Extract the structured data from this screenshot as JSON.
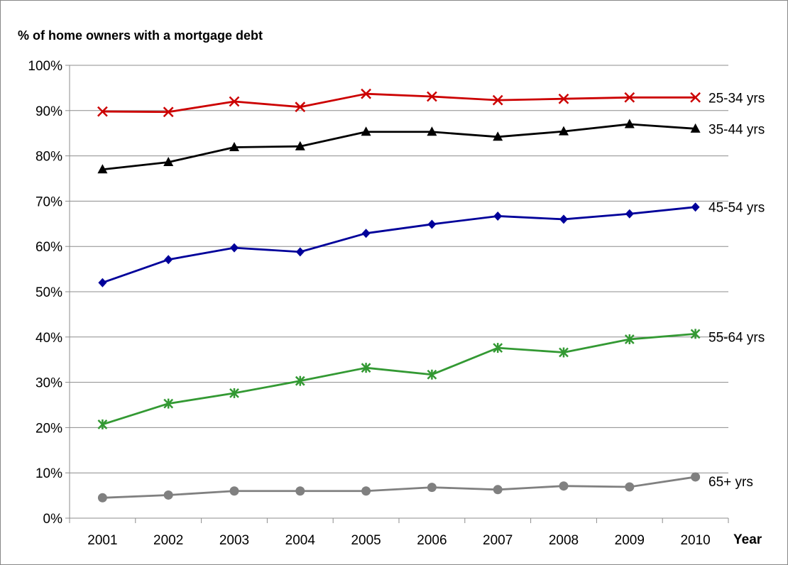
{
  "chart_data": {
    "type": "line",
    "title": "% of home owners with a mortgage debt",
    "xlabel": "Year",
    "ylabel": "",
    "x": [
      "2001",
      "2002",
      "2003",
      "2004",
      "2005",
      "2006",
      "2007",
      "2008",
      "2009",
      "2010"
    ],
    "ylim": [
      0,
      100
    ],
    "yticks": [
      "0%",
      "10%",
      "20%",
      "30%",
      "40%",
      "50%",
      "60%",
      "70%",
      "80%",
      "90%",
      "100%"
    ],
    "grid": true,
    "legend": "inline labels at right end of each series",
    "series": [
      {
        "name": "25-34 yrs",
        "color": "#cc0000",
        "marker": "x",
        "values": [
          89.8,
          89.7,
          92.0,
          90.8,
          93.7,
          93.1,
          92.3,
          92.6,
          92.9,
          92.9
        ]
      },
      {
        "name": "35-44 yrs",
        "color": "#000000",
        "marker": "triangle",
        "values": [
          77.0,
          78.6,
          81.9,
          82.1,
          85.3,
          85.3,
          84.2,
          85.4,
          87.0,
          86.0
        ]
      },
      {
        "name": "45-54 yrs",
        "color": "#00009a",
        "marker": "diamond",
        "values": [
          52.0,
          57.1,
          59.7,
          58.8,
          62.9,
          64.9,
          66.7,
          66.0,
          67.2,
          68.7
        ]
      },
      {
        "name": "55-64 yrs",
        "color": "#339933",
        "marker": "star",
        "values": [
          20.7,
          25.3,
          27.6,
          30.3,
          33.2,
          31.7,
          37.6,
          36.6,
          39.5,
          40.7
        ]
      },
      {
        "name": "65+ yrs",
        "color": "#808080",
        "marker": "circle",
        "values": [
          4.5,
          5.1,
          6.0,
          6.0,
          6.0,
          6.8,
          6.3,
          7.1,
          6.9,
          9.1
        ]
      }
    ]
  }
}
